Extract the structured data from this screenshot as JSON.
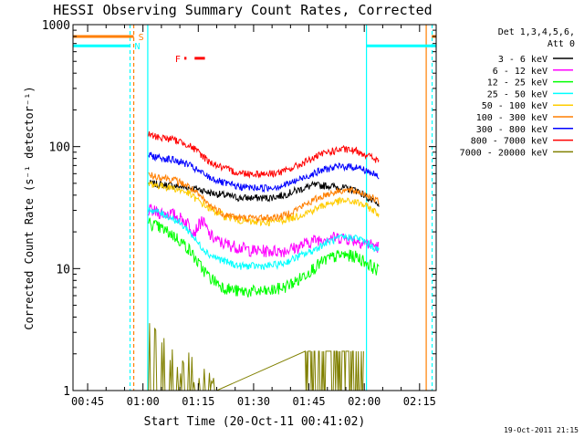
{
  "chart_data": {
    "type": "line",
    "title": "HESSI Observing Summary Count Rates, Corrected",
    "xlabel": "Start Time (20-Oct-11 00:41:02)",
    "ylabel": "Corrected Count Rate (s⁻¹ detector⁻¹)",
    "timestamp": "19-Oct-2011 21:15",
    "xlim": [
      41.03,
      139.5
    ],
    "ylim": [
      1,
      1000
    ],
    "yscale": "log",
    "x_unit": "minutes after 00:00 UT",
    "x_ticks": [
      {
        "value": 45,
        "label": "00:45"
      },
      {
        "value": 60,
        "label": "01:00"
      },
      {
        "value": 75,
        "label": "01:15"
      },
      {
        "value": 90,
        "label": "01:30"
      },
      {
        "value": 105,
        "label": "01:45"
      },
      {
        "value": 120,
        "label": "02:00"
      },
      {
        "value": 135,
        "label": "02:15"
      }
    ],
    "y_ticks": [
      {
        "value": 1,
        "label": "1"
      },
      {
        "value": 10,
        "label": "10"
      },
      {
        "value": 100,
        "label": "100"
      },
      {
        "value": 1000,
        "label": "1000"
      }
    ],
    "legend": {
      "position": "right",
      "header": [
        "Det 1,3,4,5,6,",
        "Att 0"
      ]
    },
    "series": [
      {
        "name": "3 - 6 keV",
        "color": "#000000",
        "x": [
          61.5,
          64,
          68,
          72,
          75,
          78,
          82,
          86,
          90,
          94,
          98,
          102,
          106,
          110,
          114,
          118,
          121,
          124
        ],
        "y": [
          50,
          49,
          48,
          46,
          45,
          42,
          40,
          38,
          38,
          38,
          40,
          44,
          48,
          48,
          46,
          44,
          38,
          32
        ]
      },
      {
        "name": "6 - 12 keV",
        "color": "#ff00ff",
        "x": [
          61.5,
          64,
          68,
          72,
          74,
          76,
          78,
          80,
          82,
          86,
          90,
          94,
          98,
          102,
          106,
          110,
          114,
          118,
          121,
          124
        ],
        "y": [
          30,
          29,
          28,
          24,
          20,
          25,
          19,
          17,
          16,
          15,
          14,
          14,
          14,
          15,
          17,
          18,
          18,
          17,
          16,
          15
        ]
      },
      {
        "name": "12 - 25 keV",
        "color": "#00ff00",
        "x": [
          61.5,
          64,
          68,
          72,
          75,
          78,
          82,
          86,
          90,
          94,
          98,
          102,
          106,
          110,
          114,
          118,
          121,
          124
        ],
        "y": [
          24,
          22,
          19,
          15,
          11,
          8.5,
          7,
          6.5,
          6.5,
          6.5,
          7,
          8,
          10,
          12,
          13,
          12.5,
          11,
          9.5
        ]
      },
      {
        "name": "25 - 50 keV",
        "color": "#00ffff",
        "x": [
          61.5,
          64,
          68,
          72,
          75,
          78,
          82,
          86,
          90,
          94,
          98,
          102,
          106,
          110,
          114,
          118,
          121,
          124
        ],
        "y": [
          31,
          29,
          26,
          21,
          16,
          13,
          11.5,
          10.5,
          10.5,
          10.5,
          11,
          12.5,
          14,
          16.5,
          18,
          18,
          16,
          14
        ]
      },
      {
        "name": "50 - 100 keV",
        "color": "#ffcc00",
        "x": [
          61.5,
          64,
          68,
          72,
          75,
          78,
          82,
          86,
          90,
          94,
          98,
          102,
          106,
          110,
          114,
          118,
          121,
          124
        ],
        "y": [
          50,
          48,
          46,
          42,
          36,
          31,
          27,
          25,
          24,
          24,
          25,
          27,
          30,
          34,
          36,
          35,
          32,
          28
        ]
      },
      {
        "name": "100 - 300 keV",
        "color": "#ff7f00",
        "x": [
          61.5,
          64,
          68,
          72,
          75,
          78,
          82,
          86,
          90,
          94,
          98,
          102,
          106,
          110,
          114,
          118,
          121,
          124
        ],
        "y": [
          58,
          57,
          54,
          48,
          40,
          33,
          28,
          26,
          26,
          26,
          27,
          31,
          36,
          41,
          44,
          43,
          40,
          35
        ]
      },
      {
        "name": "300 - 800 keV",
        "color": "#0000ff",
        "x": [
          61.5,
          64,
          68,
          72,
          75,
          78,
          82,
          86,
          90,
          94,
          98,
          102,
          106,
          110,
          114,
          118,
          121,
          124
        ],
        "y": [
          85,
          82,
          78,
          72,
          63,
          56,
          50,
          47,
          46,
          46,
          48,
          53,
          60,
          66,
          69,
          68,
          63,
          56
        ]
      },
      {
        "name": "800 - 7000 keV",
        "color": "#ff0000",
        "x": [
          61.5,
          64,
          68,
          72,
          75,
          78,
          82,
          86,
          90,
          94,
          98,
          102,
          106,
          110,
          114,
          118,
          121,
          124
        ],
        "y": [
          125,
          120,
          115,
          105,
          90,
          75,
          66,
          61,
          60,
          60,
          62,
          70,
          80,
          90,
          95,
          92,
          85,
          75
        ]
      },
      {
        "name": "7000 - 20000 keV",
        "color": "#808000",
        "x": [
          61.5,
          62.5,
          64,
          66,
          68,
          70,
          72,
          74,
          76,
          78,
          80,
          104,
          106,
          108,
          110,
          112,
          114,
          116,
          118,
          120
        ],
        "y": [
          3.5,
          3.5,
          2.5,
          2.5,
          2,
          1.8,
          1.6,
          1.5,
          1.3,
          1.2,
          1,
          2.1,
          2.1,
          2.1,
          2.1,
          2.1,
          2.1,
          2.1,
          2.1,
          2.1
        ]
      }
    ],
    "flag_bars": [
      {
        "label": "S",
        "color": "#ff7f00",
        "y": 800,
        "segments": [
          [
            41.03,
            57.5
          ],
          [
            138.3,
            139.5
          ]
        ]
      },
      {
        "label": "N",
        "color": "#00ffff",
        "y": 670,
        "segments": [
          [
            41.03,
            56.5
          ],
          [
            120.6,
            139.5
          ]
        ]
      },
      {
        "label": "F",
        "color": "#ff0000",
        "y": 530,
        "segments": [
          [
            71.2,
            71.8
          ],
          [
            74.0,
            76.8
          ]
        ]
      }
    ],
    "vertical_markers": [
      {
        "x": 56.5,
        "color": "#00ffff",
        "style": "dashed"
      },
      {
        "x": 57.5,
        "color": "#ff7f00",
        "style": "dashed"
      },
      {
        "x": 61.3,
        "color": "#00ffff",
        "style": "solid"
      },
      {
        "x": 120.6,
        "color": "#00ffff",
        "style": "solid"
      },
      {
        "x": 136.8,
        "color": "#ff7f00",
        "style": "solid"
      },
      {
        "x": 138.4,
        "color": "#00ffff",
        "style": "dashed"
      }
    ]
  }
}
